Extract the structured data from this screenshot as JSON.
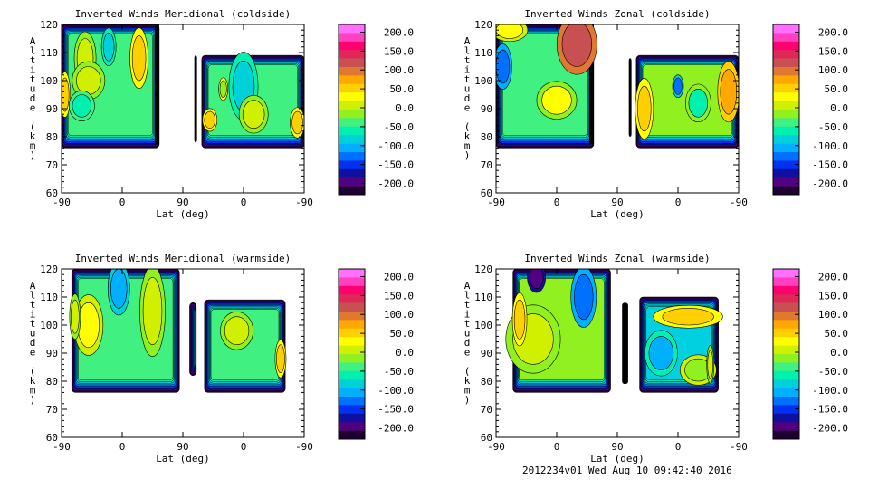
{
  "chart_data": [
    {
      "type": "heatmap",
      "title": "Inverted Winds Meridional (coldside)",
      "xlabel": "Lat (deg)",
      "ylabel": "Altitude (km)",
      "xticks": [
        "-90",
        "0",
        "90",
        "0",
        "-90"
      ],
      "yticks": [
        "60",
        "70",
        "80",
        "90",
        "100",
        "110",
        "120"
      ],
      "ylim": [
        60,
        120
      ],
      "regions": [
        {
          "u": [
            0,
            145
          ],
          "alt": [
            76,
            120
          ],
          "core": "#40f080"
        },
        {
          "u": [
            197,
            201
          ],
          "alt": [
            78,
            109
          ],
          "core": "#000000"
        },
        {
          "u": [
            208,
            360
          ],
          "alt": [
            76,
            109
          ],
          "core": "#40f080"
        }
      ],
      "blobs": [
        {
          "u": 35,
          "alt": 108,
          "ru": 12,
          "ra": 7,
          "v": 20
        },
        {
          "u": 40,
          "alt": 100,
          "ru": 18,
          "ra": 5,
          "v": 10
        },
        {
          "u": 115,
          "alt": 108,
          "ru": 10,
          "ra": 8,
          "v": 60
        },
        {
          "u": 5,
          "alt": 95,
          "ru": 6,
          "ra": 6,
          "v": 50
        },
        {
          "u": 70,
          "alt": 112,
          "ru": 8,
          "ra": 5,
          "v": -75
        },
        {
          "u": 30,
          "alt": 91,
          "ru": 14,
          "ra": 4,
          "v": -50
        },
        {
          "u": 270,
          "alt": 98,
          "ru": 16,
          "ra": 9,
          "v": -75
        },
        {
          "u": 285,
          "alt": 88,
          "ru": 16,
          "ra": 5,
          "v": 20
        },
        {
          "u": 220,
          "alt": 86,
          "ru": 8,
          "ra": 3,
          "v": 60
        },
        {
          "u": 350,
          "alt": 85,
          "ru": 8,
          "ra": 4,
          "v": 60
        },
        {
          "u": 240,
          "alt": 97,
          "ru": 5,
          "ra": 3,
          "v": 0
        }
      ]
    },
    {
      "type": "heatmap",
      "title": "Inverted Winds Zonal (coldside)",
      "xlabel": "Lat (deg)",
      "ylabel": "Altitude (km)",
      "xticks": [
        "-90",
        "0",
        "90",
        "0",
        "-90"
      ],
      "yticks": [
        "60",
        "70",
        "80",
        "90",
        "100",
        "110",
        "120"
      ],
      "ylim": [
        60,
        120
      ],
      "regions": [
        {
          "u": [
            0,
            145
          ],
          "alt": [
            76,
            120
          ],
          "core": "#40f080"
        },
        {
          "u": [
            197,
            201
          ],
          "alt": [
            80,
            108
          ],
          "core": "#000000"
        },
        {
          "u": [
            208,
            360
          ],
          "alt": [
            76,
            109
          ],
          "core": "#90f020"
        }
      ],
      "blobs": [
        {
          "u": 120,
          "alt": 113,
          "ru": 22,
          "ra": 8,
          "v": 110
        },
        {
          "u": 20,
          "alt": 118,
          "ru": 20,
          "ra": 3,
          "v": 30
        },
        {
          "u": 90,
          "alt": 93,
          "ru": 22,
          "ra": 5,
          "v": 25
        },
        {
          "u": 10,
          "alt": 105,
          "ru": 10,
          "ra": 6,
          "v": -110
        },
        {
          "u": 270,
          "alt": 98,
          "ru": 6,
          "ra": 3,
          "v": -100
        },
        {
          "u": 220,
          "alt": 90,
          "ru": 10,
          "ra": 8,
          "v": 60
        },
        {
          "u": 345,
          "alt": 96,
          "ru": 12,
          "ra": 8,
          "v": 70
        },
        {
          "u": 300,
          "alt": 92,
          "ru": 14,
          "ra": 5,
          "v": -40
        }
      ]
    },
    {
      "type": "heatmap",
      "title": "Inverted Winds Meridional (warmside)",
      "xlabel": "Lat (deg)",
      "ylabel": "Altitude (km)",
      "xticks": [
        "-90",
        "0",
        "90",
        "0",
        "-90"
      ],
      "yticks": [
        "60",
        "70",
        "80",
        "90",
        "100",
        "110",
        "120"
      ],
      "ylim": [
        60,
        120
      ],
      "regions": [
        {
          "u": [
            15,
            175
          ],
          "alt": [
            76,
            120
          ],
          "core": "#40f080"
        },
        {
          "u": [
            190,
            200
          ],
          "alt": [
            82,
            108
          ],
          "core": "#40f080"
        },
        {
          "u": [
            212,
            332
          ],
          "alt": [
            76,
            109
          ],
          "core": "#40f080"
        }
      ],
      "blobs": [
        {
          "u": 40,
          "alt": 100,
          "ru": 16,
          "ra": 8,
          "v": 40
        },
        {
          "u": 20,
          "alt": 103,
          "ru": 6,
          "ra": 6,
          "v": 20
        },
        {
          "u": 85,
          "alt": 113,
          "ru": 12,
          "ra": 7,
          "v": -90
        },
        {
          "u": 135,
          "alt": 105,
          "ru": 14,
          "ra": 12,
          "v": 10
        },
        {
          "u": 260,
          "alt": 98,
          "ru": 18,
          "ra": 5,
          "v": 20
        },
        {
          "u": 325,
          "alt": 88,
          "ru": 6,
          "ra": 5,
          "v": 50
        }
      ]
    },
    {
      "type": "heatmap",
      "title": "Inverted Winds Zonal (warmside)",
      "xlabel": "Lat (deg)",
      "ylabel": "Altitude (km)",
      "xticks": [
        "-90",
        "0",
        "90",
        "0",
        "-90"
      ],
      "yticks": [
        "60",
        "70",
        "80",
        "90",
        "100",
        "110",
        "120"
      ],
      "ylim": [
        60,
        120
      ],
      "regions": [
        {
          "u": [
            25,
            170
          ],
          "alt": [
            76,
            120
          ],
          "core": "#90f020"
        },
        {
          "u": [
            187,
            196
          ],
          "alt": [
            79,
            108
          ],
          "core": "#000000"
        },
        {
          "u": [
            213,
            330
          ],
          "alt": [
            76,
            110
          ],
          "core": "#00d0e0"
        }
      ],
      "blobs": [
        {
          "u": 55,
          "alt": 95,
          "ru": 30,
          "ra": 9,
          "v": 20
        },
        {
          "u": 35,
          "alt": 102,
          "ru": 8,
          "ra": 7,
          "v": 60
        },
        {
          "u": 60,
          "alt": 117,
          "ru": 10,
          "ra": 4,
          "v": -170
        },
        {
          "u": 130,
          "alt": 110,
          "ru": 14,
          "ra": 8,
          "v": -110
        },
        {
          "u": 285,
          "alt": 103,
          "ru": 38,
          "ra": 3,
          "v": 60
        },
        {
          "u": 245,
          "alt": 90,
          "ru": 18,
          "ra": 6,
          "v": -80
        },
        {
          "u": 300,
          "alt": 84,
          "ru": 20,
          "ra": 4,
          "v": -10
        },
        {
          "u": 318,
          "alt": 86,
          "ru": 4,
          "ra": 5,
          "v": 20
        }
      ]
    }
  ],
  "colorbar": {
    "ticks": [
      "200.0",
      "150.0",
      "100.0",
      "50.0",
      "0.0",
      "-50.0",
      "-100.0",
      "-150.0",
      "-200.0"
    ],
    "range": [
      -200,
      200
    ],
    "colors": [
      "#ff70ff",
      "#ff40c0",
      "#ff0070",
      "#e02858",
      "#c85050",
      "#e07830",
      "#ffa800",
      "#ffd000",
      "#ffff00",
      "#d0f000",
      "#90f020",
      "#40f080",
      "#00f0b0",
      "#00d0d8",
      "#00b0ff",
      "#0070ff",
      "#0030f0",
      "#1010a0",
      "#500080",
      "#200030"
    ]
  },
  "footer": "2012234v01 Wed Aug 10 09:42:40 2016"
}
